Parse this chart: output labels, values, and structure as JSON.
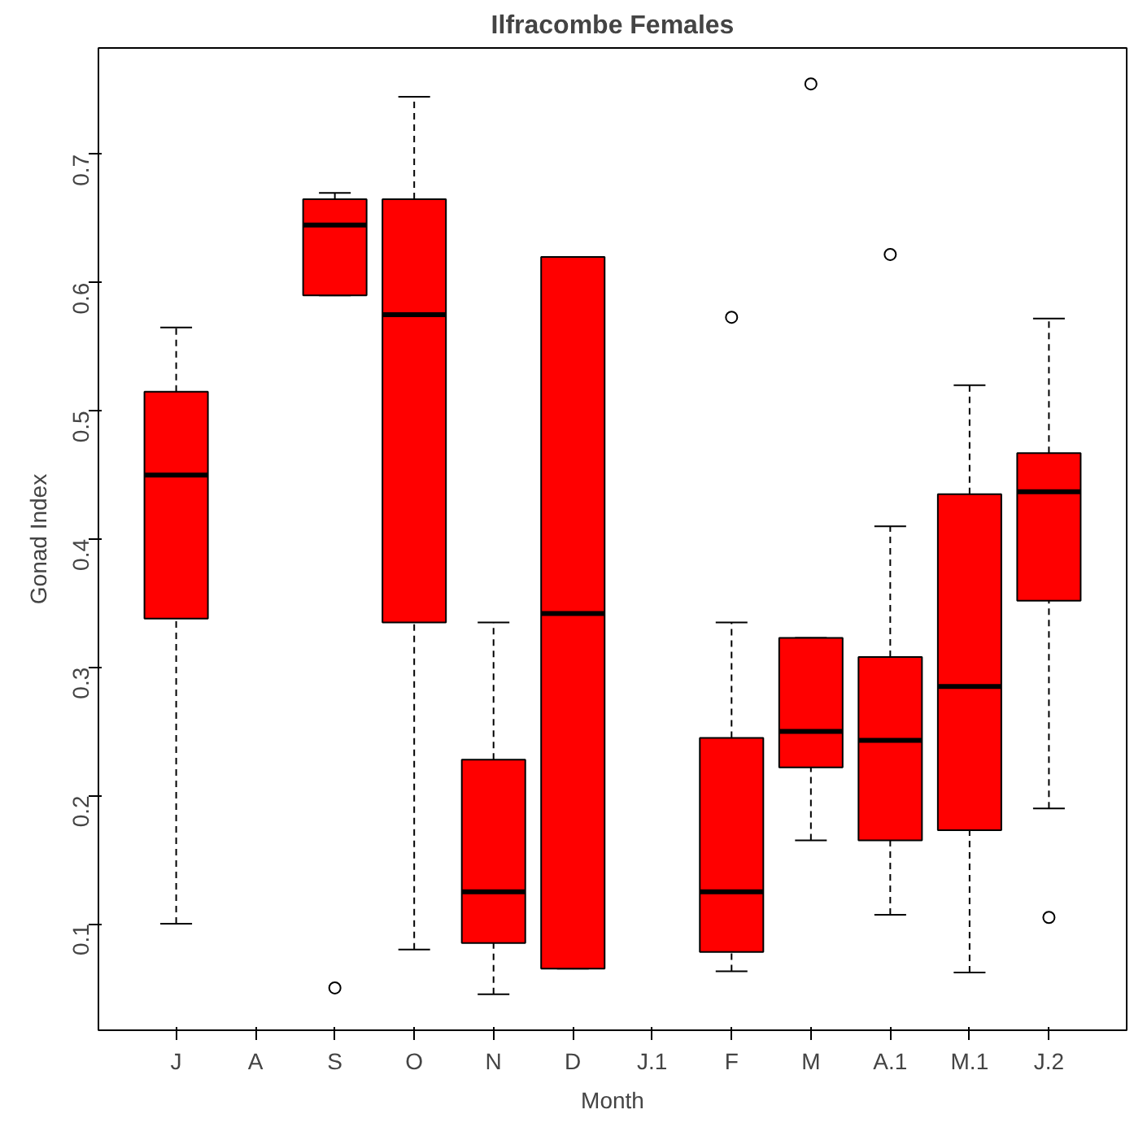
{
  "chart_data": {
    "type": "box",
    "title": "Ilfracombe Females",
    "xlabel": "Month",
    "ylabel": "Gonad Index",
    "categories": [
      "J",
      "A",
      "S",
      "O",
      "N",
      "D",
      "J.1",
      "F",
      "M",
      "A.1",
      "M.1",
      "J.2"
    ],
    "color": "#ff0000",
    "boxes": [
      {
        "low": 0.1,
        "q1": 0.338,
        "median": 0.45,
        "q3": 0.515,
        "high": 0.565
      },
      null,
      {
        "low": 0.59,
        "q1": 0.59,
        "median": 0.645,
        "q3": 0.665,
        "high": 0.67,
        "outliers": [
          0.05
        ]
      },
      {
        "low": 0.08,
        "q1": 0.335,
        "median": 0.575,
        "q3": 0.665,
        "high": 0.745
      },
      {
        "low": 0.045,
        "q1": 0.085,
        "median": 0.125,
        "q3": 0.228,
        "high": 0.335
      },
      {
        "low": 0.065,
        "q1": 0.065,
        "median": 0.342,
        "q3": 0.62,
        "high": 0.62
      },
      null,
      {
        "low": 0.063,
        "q1": 0.078,
        "median": 0.125,
        "q3": 0.245,
        "high": 0.335,
        "outliers": [
          0.573
        ]
      },
      {
        "low": 0.165,
        "q1": 0.222,
        "median": 0.25,
        "q3": 0.323,
        "high": 0.323,
        "outliers": [
          0.755
        ]
      },
      {
        "low": 0.107,
        "q1": 0.165,
        "median": 0.243,
        "q3": 0.308,
        "high": 0.41,
        "outliers": [
          0.622
        ]
      },
      {
        "low": 0.062,
        "q1": 0.173,
        "median": 0.285,
        "q3": 0.435,
        "high": 0.52
      },
      {
        "low": 0.19,
        "q1": 0.352,
        "median": 0.437,
        "q3": 0.467,
        "high": 0.572,
        "outliers": [
          0.105
        ]
      }
    ],
    "ylim": [
      0.017,
      0.783
    ],
    "yticks": [
      0.1,
      0.2,
      0.3,
      0.4,
      0.5,
      0.6,
      0.7
    ],
    "grid": false
  }
}
